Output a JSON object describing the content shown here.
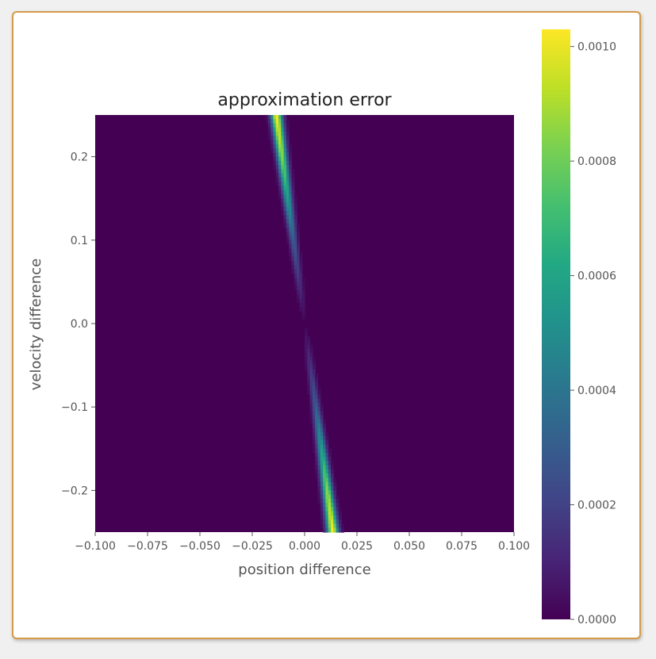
{
  "chart_data": {
    "type": "heatmap",
    "title": "approximation error",
    "xlabel": "position difference",
    "ylabel": "velocity difference",
    "xlim": [
      -0.1,
      0.1
    ],
    "ylim": [
      -0.25,
      0.25
    ],
    "x_ticks": [
      -0.1,
      -0.075,
      -0.05,
      -0.025,
      0.0,
      0.025,
      0.05,
      0.075,
      0.1
    ],
    "x_tick_labels": [
      "−0.100",
      "−0.075",
      "−0.050",
      "−0.025",
      "0.000",
      "0.025",
      "0.050",
      "0.075",
      "0.100"
    ],
    "y_ticks": [
      0.2,
      0.1,
      0.0,
      -0.1,
      -0.2
    ],
    "y_tick_labels": [
      "0.2",
      "0.1",
      "0.0",
      "−0.1",
      "−0.2"
    ],
    "colormap": "viridis",
    "background_color": "#440154",
    "colorbar": {
      "range": [
        0.0,
        0.00103
      ],
      "ticks": [
        0.0,
        0.0002,
        0.0004,
        0.0006,
        0.0008,
        0.001
      ],
      "tick_labels": [
        "0.0000",
        "0.0002",
        "0.0004",
        "0.0006",
        "0.0008",
        "0.0010"
      ]
    },
    "band": {
      "description_points": [
        {
          "velocity": 0.25,
          "position": -0.0135,
          "peak_error": 0.00103
        },
        {
          "velocity": 0.2,
          "position": -0.0115,
          "peak_error": 0.00085
        },
        {
          "velocity": 0.1,
          "position": -0.0075,
          "peak_error": 0.0003
        },
        {
          "velocity": 0.0,
          "position": 0.0,
          "peak_error": 0.0
        },
        {
          "velocity": -0.1,
          "position": 0.0075,
          "peak_error": 0.0003
        },
        {
          "velocity": -0.2,
          "position": 0.0115,
          "peak_error": 0.00085
        },
        {
          "velocity": -0.25,
          "position": 0.0135,
          "peak_error": 0.00103
        }
      ],
      "position_slope_per_velocity": -0.054,
      "width_position_units": 0.0022
    },
    "grid": false
  }
}
